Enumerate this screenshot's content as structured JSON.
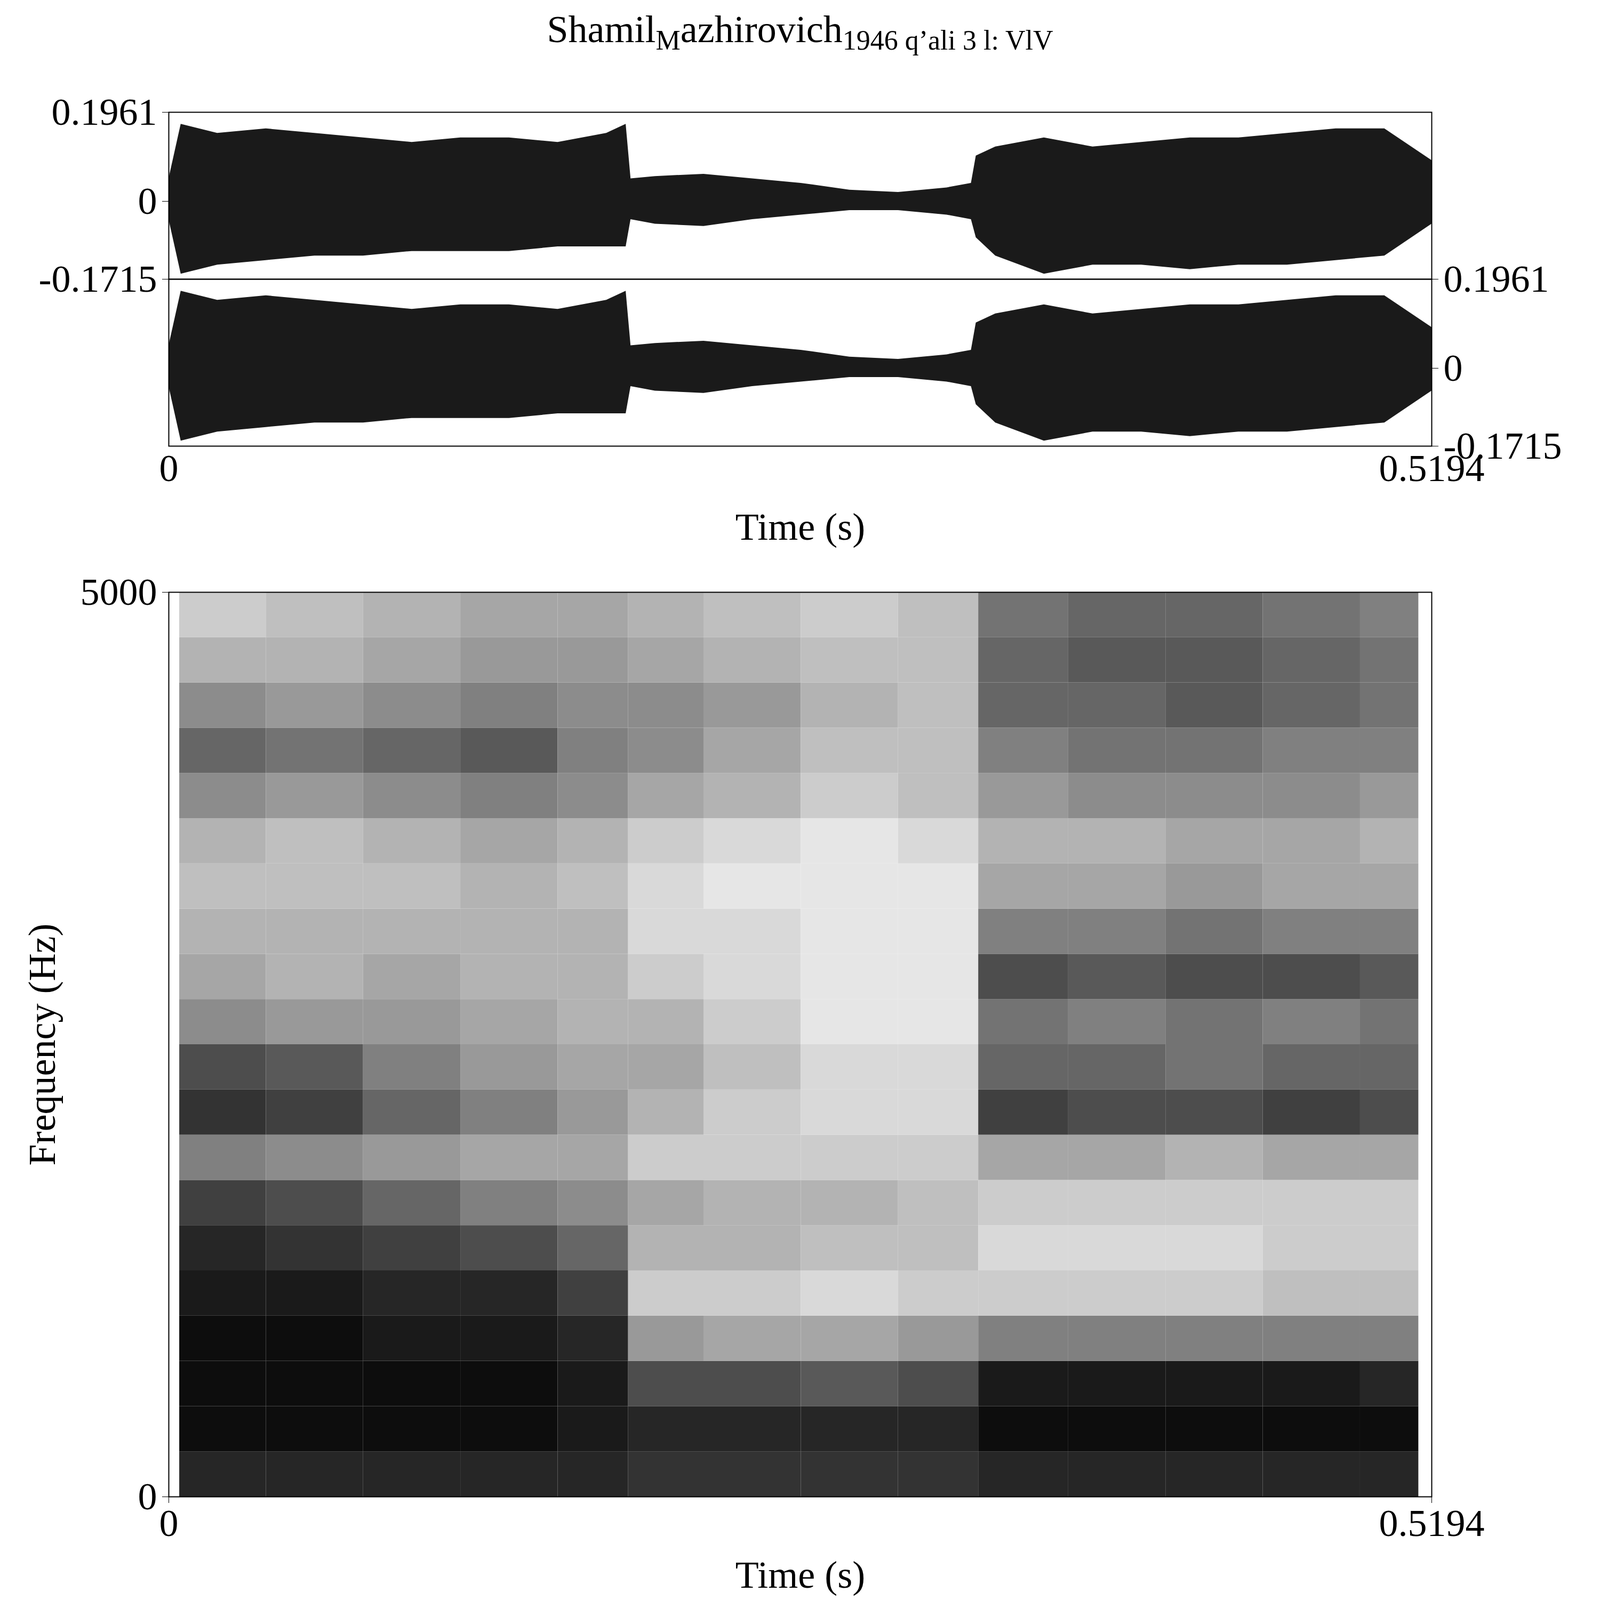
{
  "chart_data": [
    {
      "type": "waveform",
      "title": [
        "Shamil",
        "M",
        "azhirovich",
        "1946 q’ali 3 l: VlV"
      ],
      "xlabel": "Time (s)",
      "xlim": [
        0,
        0.5194
      ],
      "xticks": [
        0,
        0.5194
      ],
      "x": [
        0,
        0.005,
        0.02,
        0.04,
        0.06,
        0.08,
        0.1,
        0.12,
        0.14,
        0.16,
        0.18,
        0.188,
        0.19,
        0.2,
        0.22,
        0.24,
        0.26,
        0.28,
        0.3,
        0.32,
        0.33,
        0.332,
        0.34,
        0.36,
        0.38,
        0.4,
        0.42,
        0.44,
        0.46,
        0.48,
        0.5,
        0.5194
      ],
      "series": [
        {
          "axis": "y",
          "ylim": [
            -0.1715,
            0.1961
          ],
          "yticks": [
            -0.1715,
            0,
            0.1961
          ],
          "upper": [
            0.05,
            0.17,
            0.15,
            0.16,
            0.15,
            0.14,
            0.13,
            0.14,
            0.14,
            0.13,
            0.15,
            0.17,
            0.05,
            0.055,
            0.06,
            0.05,
            0.04,
            0.025,
            0.02,
            0.03,
            0.04,
            0.1,
            0.12,
            0.14,
            0.12,
            0.13,
            0.14,
            0.14,
            0.15,
            0.16,
            0.16,
            0.09
          ],
          "lower": [
            -0.04,
            -0.16,
            -0.14,
            -0.13,
            -0.12,
            -0.12,
            -0.11,
            -0.11,
            -0.11,
            -0.1,
            -0.1,
            -0.1,
            -0.04,
            -0.05,
            -0.055,
            -0.04,
            -0.03,
            -0.02,
            -0.02,
            -0.03,
            -0.04,
            -0.08,
            -0.12,
            -0.16,
            -0.14,
            -0.14,
            -0.15,
            -0.14,
            -0.14,
            -0.13,
            -0.12,
            -0.05
          ]
        },
        {
          "axis": "y2",
          "ylim": [
            -0.1715,
            0.1961
          ],
          "yticks": [
            -0.1715,
            0,
            0.1961
          ],
          "upper": [
            0.05,
            0.17,
            0.15,
            0.16,
            0.15,
            0.14,
            0.13,
            0.14,
            0.14,
            0.13,
            0.15,
            0.17,
            0.05,
            0.055,
            0.06,
            0.05,
            0.04,
            0.025,
            0.02,
            0.03,
            0.04,
            0.1,
            0.12,
            0.14,
            0.12,
            0.13,
            0.14,
            0.14,
            0.15,
            0.16,
            0.16,
            0.09
          ],
          "lower": [
            -0.04,
            -0.16,
            -0.14,
            -0.13,
            -0.12,
            -0.12,
            -0.11,
            -0.11,
            -0.11,
            -0.1,
            -0.1,
            -0.1,
            -0.04,
            -0.05,
            -0.055,
            -0.04,
            -0.03,
            -0.02,
            -0.02,
            -0.03,
            -0.04,
            -0.08,
            -0.12,
            -0.16,
            -0.14,
            -0.14,
            -0.15,
            -0.14,
            -0.14,
            -0.13,
            -0.12,
            -0.05
          ]
        }
      ]
    },
    {
      "type": "heatmap",
      "xlabel": "Time (s)",
      "ylabel": "Frequency (Hz)",
      "xlim": [
        0,
        0.5194
      ],
      "xticks": [
        0,
        0.5194
      ],
      "ylim": [
        0,
        5000
      ],
      "yticks": [
        0,
        5000
      ],
      "zlim": [
        0,
        1
      ],
      "time_bins": [
        0.0044,
        0.04,
        0.08,
        0.12,
        0.16,
        0.189,
        0.22,
        0.26,
        0.3,
        0.333,
        0.37,
        0.41,
        0.45,
        0.49,
        0.514
      ],
      "frequency_bins": [
        0,
        250,
        500,
        750,
        1000,
        1250,
        1500,
        1750,
        2000,
        2250,
        2500,
        2750,
        3000,
        3250,
        3500,
        3750,
        4000,
        4250,
        4500,
        4750,
        5000
      ],
      "cells": [
        [
          0.85,
          0.85,
          0.85,
          0.85,
          0.85,
          0.8,
          0.8,
          0.8,
          0.8,
          0.85,
          0.85,
          0.85,
          0.85,
          0.85
        ],
        [
          0.95,
          0.95,
          0.95,
          0.95,
          0.9,
          0.85,
          0.85,
          0.85,
          0.85,
          0.95,
          0.95,
          0.95,
          0.95,
          0.95
        ],
        [
          0.95,
          0.95,
          0.95,
          0.95,
          0.9,
          0.7,
          0.7,
          0.65,
          0.7,
          0.9,
          0.9,
          0.9,
          0.9,
          0.85
        ],
        [
          0.95,
          0.95,
          0.9,
          0.9,
          0.85,
          0.4,
          0.35,
          0.35,
          0.4,
          0.5,
          0.5,
          0.5,
          0.5,
          0.5
        ],
        [
          0.9,
          0.9,
          0.85,
          0.85,
          0.75,
          0.2,
          0.2,
          0.15,
          0.2,
          0.2,
          0.2,
          0.2,
          0.25,
          0.25
        ],
        [
          0.85,
          0.8,
          0.75,
          0.7,
          0.6,
          0.3,
          0.3,
          0.25,
          0.25,
          0.15,
          0.15,
          0.15,
          0.2,
          0.2
        ],
        [
          0.75,
          0.7,
          0.6,
          0.5,
          0.45,
          0.35,
          0.3,
          0.3,
          0.25,
          0.2,
          0.2,
          0.2,
          0.2,
          0.2
        ],
        [
          0.5,
          0.45,
          0.4,
          0.35,
          0.35,
          0.2,
          0.2,
          0.2,
          0.2,
          0.35,
          0.35,
          0.3,
          0.35,
          0.35
        ],
        [
          0.8,
          0.75,
          0.6,
          0.5,
          0.4,
          0.3,
          0.2,
          0.15,
          0.15,
          0.75,
          0.7,
          0.7,
          0.75,
          0.7
        ],
        [
          0.7,
          0.65,
          0.5,
          0.4,
          0.35,
          0.35,
          0.25,
          0.15,
          0.15,
          0.6,
          0.6,
          0.55,
          0.6,
          0.6
        ],
        [
          0.45,
          0.4,
          0.4,
          0.35,
          0.3,
          0.3,
          0.2,
          0.1,
          0.1,
          0.55,
          0.5,
          0.55,
          0.5,
          0.55
        ],
        [
          0.35,
          0.3,
          0.35,
          0.3,
          0.3,
          0.2,
          0.15,
          0.1,
          0.1,
          0.7,
          0.65,
          0.7,
          0.7,
          0.65
        ],
        [
          0.3,
          0.3,
          0.3,
          0.3,
          0.3,
          0.15,
          0.15,
          0.1,
          0.1,
          0.5,
          0.5,
          0.55,
          0.5,
          0.5
        ],
        [
          0.25,
          0.25,
          0.25,
          0.3,
          0.25,
          0.15,
          0.1,
          0.1,
          0.1,
          0.35,
          0.35,
          0.4,
          0.35,
          0.35
        ],
        [
          0.3,
          0.25,
          0.3,
          0.35,
          0.3,
          0.2,
          0.15,
          0.1,
          0.15,
          0.3,
          0.3,
          0.35,
          0.35,
          0.3
        ],
        [
          0.45,
          0.4,
          0.45,
          0.5,
          0.45,
          0.35,
          0.3,
          0.2,
          0.25,
          0.4,
          0.45,
          0.45,
          0.45,
          0.4
        ],
        [
          0.6,
          0.55,
          0.6,
          0.65,
          0.5,
          0.45,
          0.35,
          0.25,
          0.25,
          0.5,
          0.55,
          0.55,
          0.5,
          0.5
        ],
        [
          0.45,
          0.4,
          0.45,
          0.5,
          0.45,
          0.45,
          0.4,
          0.3,
          0.25,
          0.6,
          0.6,
          0.65,
          0.6,
          0.55
        ],
        [
          0.3,
          0.3,
          0.35,
          0.4,
          0.4,
          0.35,
          0.3,
          0.25,
          0.25,
          0.6,
          0.65,
          0.65,
          0.6,
          0.55
        ],
        [
          0.2,
          0.25,
          0.3,
          0.35,
          0.35,
          0.3,
          0.25,
          0.2,
          0.25,
          0.55,
          0.6,
          0.6,
          0.55,
          0.5
        ]
      ]
    }
  ]
}
